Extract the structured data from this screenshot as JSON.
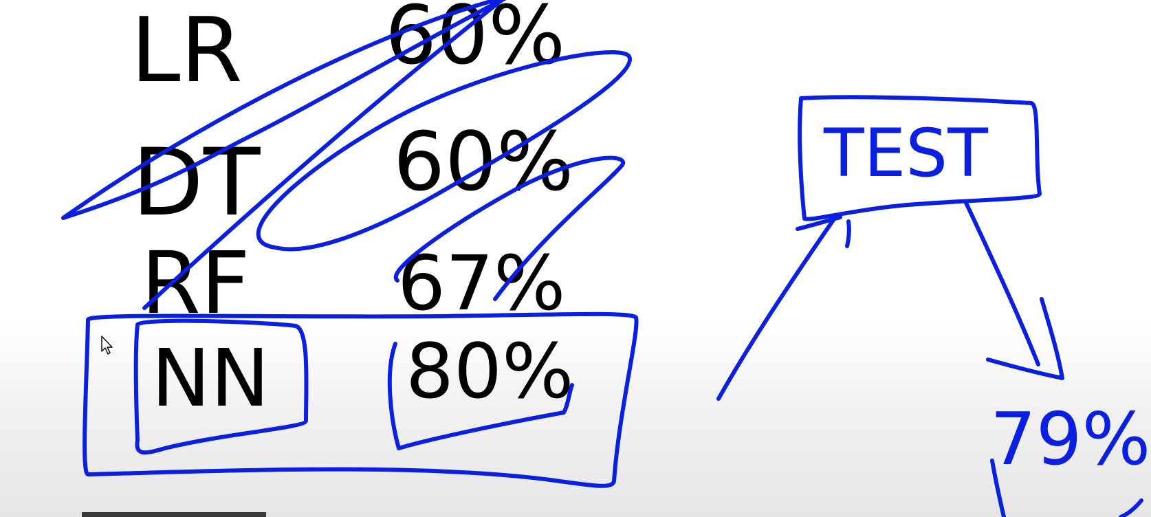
{
  "whiteboard": {
    "models": [
      {
        "name": "LR",
        "score": "60%"
      },
      {
        "name": "DT",
        "score": "60%"
      },
      {
        "name": "RF",
        "score": "67%"
      },
      {
        "name": "NN",
        "score": "80%"
      }
    ],
    "test_label": "TEST",
    "test_score": "79%"
  },
  "colors": {
    "ink_black": "#000000",
    "ink_blue": "#0a1fe0",
    "background": "#ffffff"
  },
  "icons": {
    "cursor": "mouse-pointer-icon"
  }
}
